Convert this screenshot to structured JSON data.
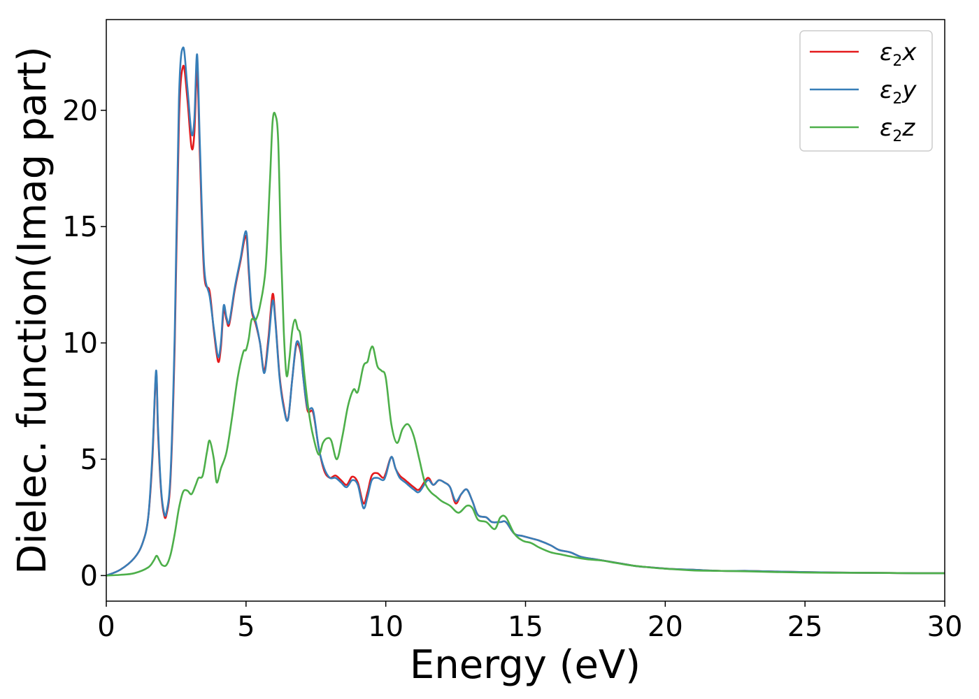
{
  "chart_data": {
    "type": "line",
    "title": "",
    "xlabel": "Energy (eV)",
    "ylabel": "Dielec. function(Imag part)",
    "xlim": [
      0,
      30
    ],
    "ylim": [
      -1.1,
      23.9
    ],
    "xticks": [
      0,
      5,
      10,
      15,
      20,
      25,
      30
    ],
    "yticks": [
      0,
      5,
      10,
      15,
      20
    ],
    "grid": false,
    "legend_position": "top-right",
    "series": [
      {
        "name": "ε2x",
        "base": "ε",
        "sub": "2",
        "var": "x",
        "color": "#e41a1c",
        "x": [
          0,
          0.5,
          1.0,
          1.3,
          1.5,
          1.65,
          1.78,
          1.85,
          1.95,
          2.05,
          2.15,
          2.3,
          2.45,
          2.6,
          2.75,
          2.9,
          3.05,
          3.15,
          3.25,
          3.35,
          3.5,
          3.7,
          3.85,
          4.0,
          4.1,
          4.2,
          4.3,
          4.4,
          4.6,
          4.8,
          5.0,
          5.1,
          5.2,
          5.35,
          5.5,
          5.65,
          5.8,
          5.95,
          6.05,
          6.2,
          6.35,
          6.5,
          6.65,
          6.8,
          6.95,
          7.05,
          7.2,
          7.4,
          7.6,
          7.8,
          8.0,
          8.2,
          8.4,
          8.6,
          8.8,
          9.0,
          9.2,
          9.35,
          9.5,
          9.7,
          9.9,
          10.0,
          10.2,
          10.35,
          10.5,
          10.7,
          11.0,
          11.2,
          11.5,
          11.7,
          11.9,
          12.1,
          12.3,
          12.5,
          12.7,
          12.9,
          13.1,
          13.3,
          13.6,
          13.8,
          14.1,
          14.3,
          14.6,
          14.9,
          15.2,
          15.5,
          15.9,
          16.2,
          16.6,
          17.0,
          17.5,
          18.0,
          18.5,
          19.0,
          19.5,
          20.0,
          20.5,
          21.0,
          22.0,
          23.0,
          24.0,
          25.0,
          26.0,
          27.0,
          28.0,
          29.0,
          30.0
        ],
        "y": [
          0,
          0.25,
          0.75,
          1.4,
          2.5,
          5.0,
          8.7,
          6.2,
          3.8,
          2.7,
          2.6,
          4.2,
          10.0,
          19.5,
          21.9,
          20.5,
          18.4,
          19.0,
          21.7,
          18.0,
          13.0,
          12.2,
          10.5,
          9.2,
          9.8,
          11.4,
          11.0,
          10.8,
          12.3,
          13.5,
          14.6,
          13.0,
          11.4,
          10.8,
          10.0,
          8.8,
          10.2,
          12.1,
          11.0,
          8.6,
          7.3,
          6.7,
          8.4,
          9.9,
          9.6,
          8.5,
          7.1,
          7.0,
          5.5,
          4.5,
          4.2,
          4.3,
          4.1,
          3.9,
          4.25,
          4.0,
          3.1,
          3.6,
          4.3,
          4.4,
          4.2,
          4.4,
          5.1,
          4.6,
          4.3,
          4.1,
          3.8,
          3.7,
          4.2,
          3.9,
          4.1,
          4.0,
          3.8,
          3.1,
          3.5,
          3.7,
          3.2,
          2.6,
          2.5,
          2.3,
          2.3,
          2.3,
          1.8,
          1.7,
          1.6,
          1.5,
          1.3,
          1.1,
          1.0,
          0.8,
          0.7,
          0.6,
          0.5,
          0.4,
          0.35,
          0.3,
          0.27,
          0.25,
          0.2,
          0.2,
          0.17,
          0.15,
          0.13,
          0.12,
          0.11,
          0.1,
          0.1
        ]
      },
      {
        "name": "ε2y",
        "base": "ε",
        "sub": "2",
        "var": "y",
        "color": "#377eb8",
        "x": [
          0,
          0.5,
          1.0,
          1.3,
          1.5,
          1.65,
          1.78,
          1.85,
          1.95,
          2.05,
          2.15,
          2.3,
          2.45,
          2.6,
          2.75,
          2.9,
          3.05,
          3.15,
          3.25,
          3.35,
          3.5,
          3.7,
          3.85,
          4.0,
          4.1,
          4.2,
          4.3,
          4.4,
          4.6,
          4.8,
          5.0,
          5.1,
          5.2,
          5.35,
          5.5,
          5.65,
          5.8,
          5.95,
          6.05,
          6.2,
          6.35,
          6.5,
          6.65,
          6.8,
          6.95,
          7.05,
          7.2,
          7.4,
          7.6,
          7.8,
          8.0,
          8.2,
          8.4,
          8.6,
          8.8,
          9.0,
          9.2,
          9.35,
          9.5,
          9.7,
          9.9,
          10.0,
          10.2,
          10.35,
          10.5,
          10.7,
          11.0,
          11.2,
          11.5,
          11.7,
          11.9,
          12.1,
          12.3,
          12.5,
          12.7,
          12.9,
          13.1,
          13.3,
          13.6,
          13.8,
          14.1,
          14.3,
          14.6,
          14.9,
          15.2,
          15.5,
          15.9,
          16.2,
          16.6,
          17.0,
          17.5,
          18.0,
          18.5,
          19.0,
          19.5,
          20.0,
          20.5,
          21.0,
          22.0,
          23.0,
          24.0,
          25.0,
          26.0,
          27.0,
          28.0,
          29.0,
          30.0
        ],
        "y": [
          0,
          0.25,
          0.75,
          1.4,
          2.5,
          5.2,
          8.8,
          6.4,
          3.9,
          2.8,
          2.7,
          4.4,
          10.5,
          20.5,
          22.7,
          21.0,
          19.0,
          19.6,
          22.4,
          18.5,
          13.3,
          12.0,
          10.6,
          9.4,
          10.0,
          11.6,
          11.1,
          10.9,
          12.4,
          13.6,
          14.8,
          13.2,
          11.5,
          10.9,
          10.0,
          8.7,
          10.0,
          11.8,
          10.9,
          8.5,
          7.2,
          6.7,
          8.4,
          10.0,
          9.7,
          8.5,
          7.2,
          7.1,
          5.5,
          4.6,
          4.2,
          4.2,
          4.0,
          3.8,
          4.1,
          3.9,
          2.9,
          3.4,
          4.1,
          4.2,
          4.1,
          4.3,
          5.1,
          4.6,
          4.2,
          4.0,
          3.7,
          3.6,
          4.1,
          3.9,
          4.1,
          4.0,
          3.8,
          3.2,
          3.5,
          3.7,
          3.2,
          2.6,
          2.5,
          2.3,
          2.3,
          2.3,
          1.8,
          1.7,
          1.6,
          1.5,
          1.3,
          1.1,
          1.0,
          0.8,
          0.7,
          0.6,
          0.5,
          0.4,
          0.35,
          0.3,
          0.27,
          0.25,
          0.2,
          0.2,
          0.17,
          0.15,
          0.13,
          0.12,
          0.11,
          0.1,
          0.1
        ]
      },
      {
        "name": "ε2z",
        "base": "ε",
        "sub": "2",
        "var": "z",
        "color": "#4daf4a",
        "x": [
          0,
          0.5,
          1.0,
          1.5,
          1.7,
          1.8,
          1.9,
          2.0,
          2.15,
          2.3,
          2.45,
          2.6,
          2.75,
          2.9,
          3.05,
          3.2,
          3.3,
          3.45,
          3.6,
          3.7,
          3.85,
          3.95,
          4.1,
          4.3,
          4.5,
          4.7,
          4.9,
          5.0,
          5.1,
          5.2,
          5.35,
          5.5,
          5.7,
          5.85,
          5.95,
          6.05,
          6.15,
          6.25,
          6.35,
          6.45,
          6.55,
          6.65,
          6.75,
          6.85,
          6.95,
          7.1,
          7.25,
          7.4,
          7.6,
          7.75,
          7.9,
          8.05,
          8.25,
          8.45,
          8.65,
          8.85,
          9.0,
          9.2,
          9.35,
          9.45,
          9.55,
          9.7,
          9.85,
          10.0,
          10.2,
          10.4,
          10.6,
          10.8,
          11.0,
          11.2,
          11.4,
          11.6,
          11.8,
          12.0,
          12.3,
          12.6,
          12.9,
          13.1,
          13.3,
          13.6,
          13.9,
          14.1,
          14.3,
          14.6,
          14.9,
          15.2,
          15.5,
          15.9,
          16.3,
          16.7,
          17.2,
          17.7,
          18.2,
          18.7,
          19.2,
          19.7,
          20.2,
          21.0,
          22.0,
          23.0,
          24.0,
          25.0,
          26.0,
          27.0,
          28.0,
          29.0,
          30.0
        ],
        "y": [
          0,
          0.03,
          0.1,
          0.35,
          0.65,
          0.85,
          0.65,
          0.45,
          0.45,
          0.9,
          1.8,
          2.9,
          3.6,
          3.65,
          3.5,
          3.9,
          4.2,
          4.3,
          5.3,
          5.8,
          5.0,
          4.0,
          4.6,
          5.3,
          6.8,
          8.5,
          9.6,
          9.7,
          10.2,
          11.0,
          11.0,
          11.6,
          13.2,
          16.8,
          19.5,
          19.8,
          18.7,
          14.0,
          10.5,
          8.6,
          9.3,
          10.5,
          11.0,
          10.6,
          10.3,
          8.5,
          7.0,
          6.0,
          5.2,
          5.7,
          5.9,
          5.8,
          5.0,
          6.0,
          7.3,
          8.0,
          7.9,
          9.0,
          9.2,
          9.7,
          9.8,
          9.0,
          8.8,
          8.5,
          6.5,
          5.7,
          6.3,
          6.5,
          6.0,
          5.0,
          4.0,
          3.6,
          3.4,
          3.2,
          3.0,
          2.7,
          3.0,
          2.9,
          2.4,
          2.3,
          2.0,
          2.5,
          2.5,
          1.8,
          1.5,
          1.4,
          1.2,
          1.0,
          0.9,
          0.8,
          0.7,
          0.65,
          0.55,
          0.45,
          0.38,
          0.32,
          0.28,
          0.22,
          0.2,
          0.18,
          0.15,
          0.13,
          0.12,
          0.12,
          0.11,
          0.1,
          0.1
        ]
      }
    ]
  }
}
